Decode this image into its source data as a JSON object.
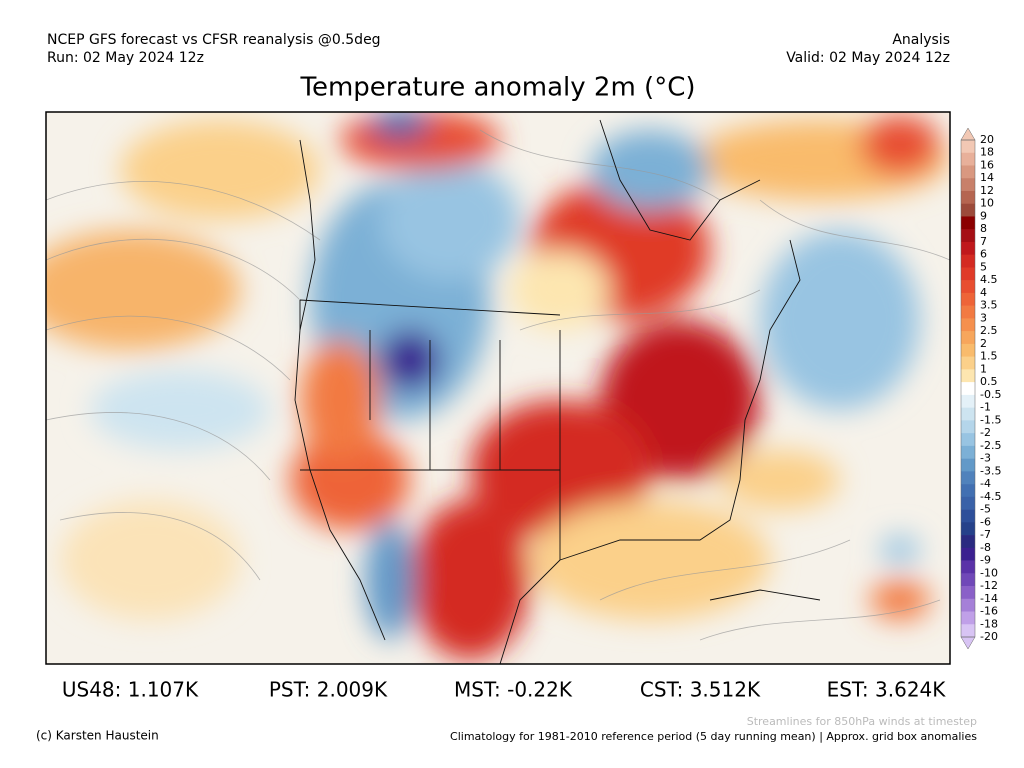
{
  "header": {
    "left": [
      "NCEP GFS forecast vs CFSR reanalysis @0.5deg",
      "Run: 02 May 2024 12z"
    ],
    "right": [
      "Analysis",
      "Valid: 02 May 2024 12z"
    ],
    "title": "Temperature anomaly 2m (°C)"
  },
  "colorbar": {
    "labels": [
      "20",
      "18",
      "16",
      "14",
      "12",
      "10",
      "9",
      "8",
      "7",
      "6",
      "5",
      "4.5",
      "4",
      "3.5",
      "3",
      "2.5",
      "2",
      "1.5",
      "1",
      "0.5",
      "-0.5",
      "-1",
      "-1.5",
      "-2",
      "-2.5",
      "-3",
      "-3.5",
      "-4",
      "-4.5",
      "-5",
      "-6",
      "-7",
      "-8",
      "-9",
      "-10",
      "-12",
      "-14",
      "-16",
      "-18",
      "-20"
    ],
    "colors": [
      "#f2c8b4",
      "#e8b09a",
      "#d99880",
      "#c8806a",
      "#b56550",
      "#9c4a3a",
      "#8b0000",
      "#a50f15",
      "#c0181c",
      "#d42a22",
      "#e03a28",
      "#e84e30",
      "#ee6438",
      "#f27a42",
      "#f5904e",
      "#f7a65c",
      "#f9bb6c",
      "#fbd08a",
      "#fde6b0",
      "#ffffff",
      "#e4f1f8",
      "#cde4f0",
      "#b4d5ea",
      "#98c4e2",
      "#7cb0d6",
      "#6299c8",
      "#5082bc",
      "#4270b2",
      "#3a62a8",
      "#2d4f9a",
      "#25418a",
      "#2a2a80",
      "#3b2090",
      "#5a32a8",
      "#7048b8",
      "#8a60c8",
      "#a580d8",
      "#c0a0e8",
      "#d8c4f4"
    ]
  },
  "stats": [
    "US48: 1.107K",
    "PST: 2.009K",
    "MST: -0.22K",
    "CST: 3.512K",
    "EST: 3.624K"
  ],
  "footer": {
    "left": "(c) Karsten Haustein",
    "right": [
      "Streamlines for 850hPa winds at timestep",
      "Climatology for 1981-2010 reference period (5 day running mean) | Approx. grid box anomalies"
    ]
  }
}
